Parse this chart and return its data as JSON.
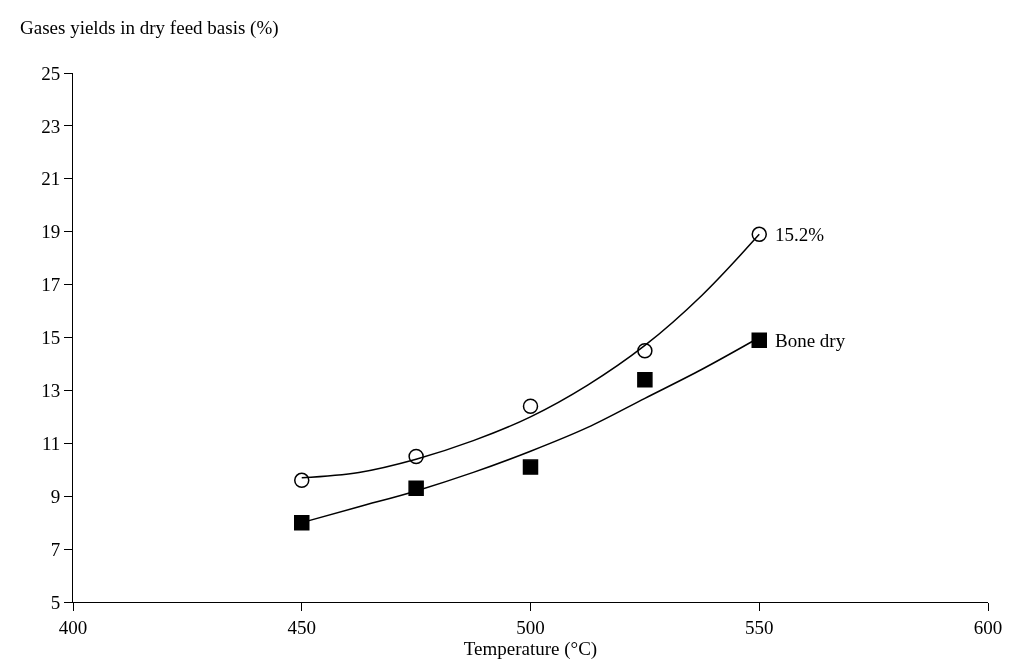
{
  "chart_data": {
    "type": "scatter",
    "xlabel": "Temperature (°C)",
    "ylabel": "Gases yields in dry feed basis (%)",
    "x": [
      450,
      475,
      500,
      525,
      550
    ],
    "series": [
      {
        "name": "15.2%",
        "color": "#000000",
        "marker": "circle",
        "values": [
          9.6,
          10.5,
          12.4,
          14.5,
          18.9
        ]
      },
      {
        "name": "Bone dry",
        "color": "#000000",
        "marker": "square",
        "values": [
          8.0,
          9.3,
          10.1,
          13.4,
          14.9
        ]
      },
      {
        "type": "line",
        "color": "#000000",
        "marker": "none",
        "line_style": "solid",
        "x": [
          450,
          462.5,
          475,
          487.5,
          500,
          512.5,
          525,
          537.5,
          550
        ],
        "values": [
          9.7,
          9.9,
          10.4,
          11.1,
          12.0,
          13.2,
          14.7,
          16.6,
          18.9
        ]
      },
      {
        "type": "line",
        "color": "#000000",
        "marker": "none",
        "line_style": "solid",
        "x": [
          450,
          462.5,
          475,
          487.5,
          500,
          512.5,
          525,
          537.5,
          550
        ],
        "values": [
          8.0,
          8.6,
          9.2,
          9.9,
          10.7,
          11.6,
          12.7,
          13.8,
          15.0
        ]
      }
    ],
    "xlim": [
      400,
      600
    ],
    "xticks": [
      400,
      450,
      500,
      550,
      600
    ],
    "ylim": [
      5,
      25
    ],
    "yticks": [
      5,
      7,
      9,
      11,
      13,
      15,
      17,
      19,
      21,
      23,
      25
    ],
    "grid": false,
    "legend": false
  }
}
